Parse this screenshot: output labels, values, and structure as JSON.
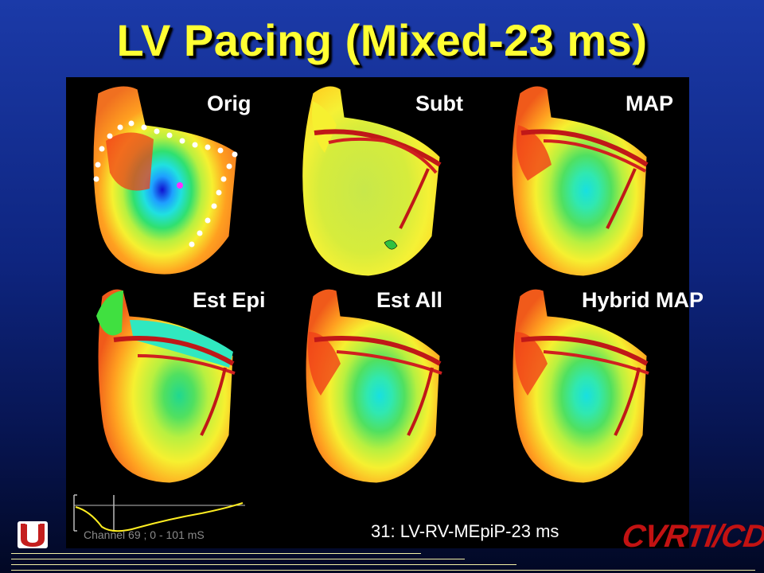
{
  "slide": {
    "title": "LV Pacing (Mixed-23 ms)",
    "caption": "31: LV-RV-MEpiP-23 ms",
    "channel_label": "Channel 69 ; 0 - 101 mS",
    "brand": "CVRTI/CDSP"
  },
  "maps": {
    "top": [
      "Orig",
      "Subt",
      "MAP"
    ],
    "bottom": [
      "Est Epi",
      "Est All",
      "Hybrid MAP"
    ]
  },
  "icons": {
    "logo": "utah-u-logo-icon"
  },
  "colors": {
    "title": "#ffff33",
    "background": "#0e2580",
    "brand": "#c21212"
  }
}
